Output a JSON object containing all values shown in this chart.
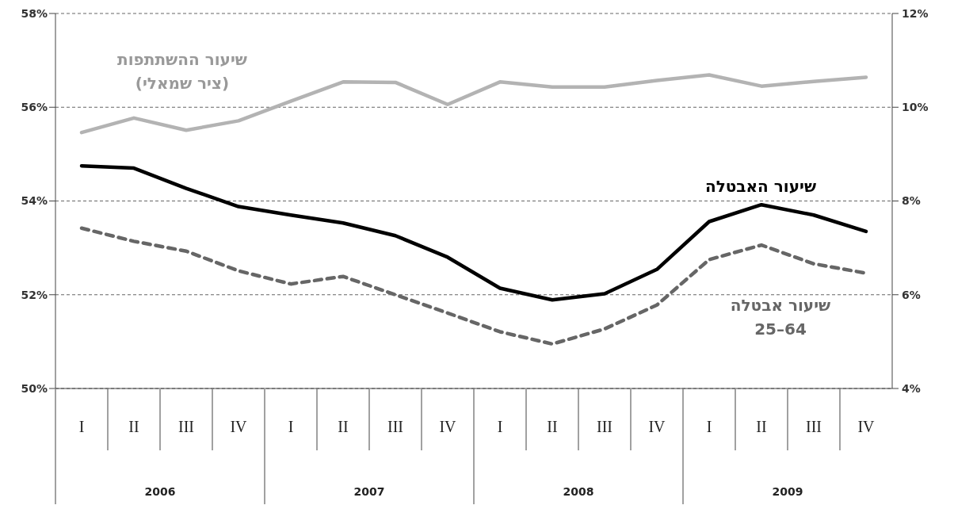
{
  "chart_data": {
    "type": "line",
    "categories": [
      "I",
      "II",
      "III",
      "IV",
      "I",
      "II",
      "III",
      "IV",
      "I",
      "II",
      "III",
      "IV",
      "I",
      "II",
      "III",
      "IV"
    ],
    "annotations": [
      "2006",
      "2007",
      "2008",
      "2009"
    ],
    "ylim": [
      50,
      58
    ],
    "yticks": [
      {
        "value": 50,
        "label": "50%"
      },
      {
        "value": 52,
        "label": "52%"
      },
      {
        "value": 54,
        "label": "54%"
      },
      {
        "value": 56,
        "label": "56%"
      },
      {
        "value": 58,
        "label": "58%"
      }
    ],
    "y2lim": [
      4,
      12
    ],
    "y2ticks": [
      {
        "value": 4,
        "label": "4%"
      },
      {
        "value": 6,
        "label": "6%"
      },
      {
        "value": 8,
        "label": "8%"
      },
      {
        "value": 10,
        "label": "10%"
      },
      {
        "value": 12,
        "label": "12%"
      }
    ],
    "grid": "y",
    "legend": false,
    "marker": "none",
    "series": [
      {
        "name": "שיעור ההשתתפות\n(ציר שמאלי)",
        "color": "#b3b3b3",
        "line_style": "solid",
        "values": [
          55.46,
          55.77,
          55.51,
          55.71,
          56.13,
          56.54,
          56.53,
          56.06,
          56.54,
          56.43,
          56.43,
          56.57,
          56.69,
          56.45,
          56.55,
          56.64
        ]
      },
      {
        "name": "שיעור האבטלה",
        "color": "#000000",
        "axis": "y2",
        "line_style": "solid",
        "values": [
          8.75,
          8.7,
          8.27,
          7.88,
          7.7,
          7.53,
          7.26,
          6.8,
          6.14,
          5.89,
          6.02,
          6.54,
          7.56,
          7.92,
          7.7,
          7.35
        ]
      },
      {
        "name": "שיעור אבטלה\n25–64",
        "color": "#666666",
        "axis": "y2",
        "line_style": "dashed",
        "values": [
          7.42,
          7.14,
          6.93,
          6.51,
          6.23,
          6.39,
          6.0,
          5.61,
          5.21,
          4.95,
          5.27,
          5.78,
          6.75,
          7.06,
          6.66,
          6.46
        ]
      }
    ]
  }
}
